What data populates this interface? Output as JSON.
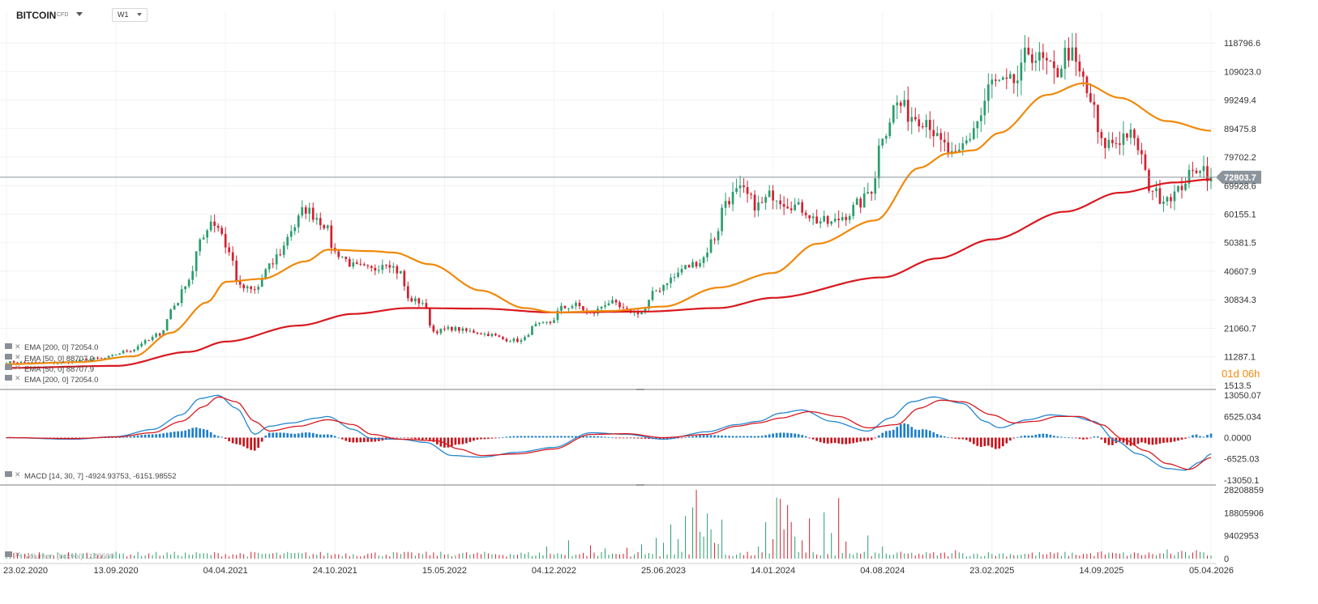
{
  "header": {
    "symbol": "BITCOIN",
    "symbol_sub": "CFD",
    "timeframe": "W1"
  },
  "countdown": {
    "days": "01d",
    "hours": "06h"
  },
  "indicators": {
    "ema200_label": "EMA [200, 0] 72054.0",
    "ema50_label": "EMA [50, 0] 88707.9",
    "macd_label": "MACD [14, 30, 7] -4924.93753, -6151.98552",
    "volume_label": "Volumen (tickvol) 1149680"
  },
  "colors": {
    "up": "#2a9d6e",
    "down": "#d32030",
    "ema50": "#f0890a",
    "ema200": "#d8191f",
    "macd_line": "#2487d0",
    "signal_line": "#d8191f",
    "hist_up": "#1f7fc9",
    "hist_down": "#c7141c",
    "price_tag": "#8c949c"
  },
  "chart_data": [
    {
      "type": "candlestick",
      "x_labels": [
        "23.02.2020",
        "13.09.2020",
        "04.04.2021",
        "24.10.2021",
        "15.05.2022",
        "04.12.2022",
        "25.06.2023",
        "14.01.2024",
        "04.08.2024",
        "23.02.2025",
        "14.09.2025",
        "05.04.2026"
      ],
      "y_ticks": [
        118796.6,
        109023.0,
        99249.4,
        89475.8,
        79702.2,
        69928.6,
        60155.1,
        50381.5,
        40607.9,
        30834.3,
        21060.7,
        11287.1,
        1513.5
      ],
      "ylim": [
        1513.5,
        125000
      ],
      "current_price": 72803.7,
      "anchors_close": [
        [
          0,
          9500
        ],
        [
          14,
          9200
        ],
        [
          26,
          10800
        ],
        [
          34,
          13500
        ],
        [
          38,
          16500
        ],
        [
          42,
          19200
        ],
        [
          46,
          29000
        ],
        [
          50,
          38000
        ],
        [
          53,
          50000
        ],
        [
          56,
          58000
        ],
        [
          58,
          56000
        ],
        [
          61,
          47000
        ],
        [
          64,
          35000
        ],
        [
          68,
          34000
        ],
        [
          72,
          42000
        ],
        [
          75,
          47000
        ],
        [
          78,
          55000
        ],
        [
          82,
          62000
        ],
        [
          84,
          60000
        ],
        [
          87,
          57000
        ],
        [
          90,
          47000
        ],
        [
          96,
          42000
        ],
        [
          100,
          41000
        ],
        [
          104,
          44000
        ],
        [
          108,
          40000
        ],
        [
          110,
          31000
        ],
        [
          114,
          30000
        ],
        [
          117,
          20000
        ],
        [
          122,
          21000
        ],
        [
          127,
          20000
        ],
        [
          132,
          19000
        ],
        [
          137,
          17200
        ],
        [
          141,
          16800
        ],
        [
          145,
          22000
        ],
        [
          149,
          23000
        ],
        [
          152,
          28000
        ],
        [
          156,
          29000
        ],
        [
          160,
          26000
        ],
        [
          165,
          30000
        ],
        [
          170,
          27000
        ],
        [
          174,
          26500
        ],
        [
          178,
          34000
        ],
        [
          182,
          38000
        ],
        [
          186,
          42000
        ],
        [
          190,
          44000
        ],
        [
          194,
          52000
        ],
        [
          197,
          65000
        ],
        [
          201,
          68000
        ],
        [
          206,
          63000
        ],
        [
          210,
          67000
        ],
        [
          214,
          64000
        ],
        [
          218,
          62000
        ],
        [
          222,
          58000
        ],
        [
          226,
          57000
        ],
        [
          230,
          60000
        ],
        [
          234,
          64000
        ],
        [
          237,
          69000
        ],
        [
          240,
          88000
        ],
        [
          244,
          98000
        ],
        [
          248,
          94000
        ],
        [
          252,
          93000
        ],
        [
          256,
          84000
        ],
        [
          260,
          79000
        ],
        [
          263,
          85000
        ],
        [
          266,
          92000
        ],
        [
          270,
          105000
        ],
        [
          274,
          104000
        ],
        [
          277,
          106000
        ],
        [
          280,
          116000
        ],
        [
          284,
          112000
        ],
        [
          287,
          108000
        ],
        [
          291,
          116000
        ],
        [
          294,
          108000
        ],
        [
          297,
          99000
        ],
        [
          300,
          84000
        ],
        [
          304,
          85000
        ],
        [
          307,
          88000
        ],
        [
          310,
          83000
        ],
        [
          313,
          70000
        ],
        [
          316,
          66000
        ],
        [
          320,
          67000
        ],
        [
          324,
          73000
        ],
        [
          327,
          77000
        ],
        [
          330,
          72803.7
        ]
      ],
      "series": [
        {
          "name": "EMA [200, 0] 72054.0",
          "anchors": [
            [
              0,
              7500
            ],
            [
              30,
              8200
            ],
            [
              50,
              13000
            ],
            [
              60,
              16500
            ],
            [
              80,
              22000
            ],
            [
              95,
              26000
            ],
            [
              110,
              28000
            ],
            [
              130,
              27800
            ],
            [
              150,
              26500
            ],
            [
              175,
              26800
            ],
            [
              195,
              28000
            ],
            [
              210,
              31500
            ],
            [
              240,
              38500
            ],
            [
              255,
              45000
            ],
            [
              270,
              51500
            ],
            [
              290,
              61000
            ],
            [
              305,
              67500
            ],
            [
              320,
              71000
            ],
            [
              330,
              72054
            ]
          ]
        },
        {
          "name": "EMA [50, 0] 88707.9",
          "anchors": [
            [
              0,
              8800
            ],
            [
              20,
              9500
            ],
            [
              35,
              11500
            ],
            [
              45,
              19500
            ],
            [
              55,
              30000
            ],
            [
              60,
              37000
            ],
            [
              70,
              38000
            ],
            [
              82,
              44000
            ],
            [
              88,
              48000
            ],
            [
              100,
              47500
            ],
            [
              106,
              47000
            ],
            [
              116,
              43000
            ],
            [
              130,
              34000
            ],
            [
              142,
              28000
            ],
            [
              150,
              26500
            ],
            [
              165,
              27000
            ],
            [
              180,
              28500
            ],
            [
              195,
              35000
            ],
            [
              210,
              40000
            ],
            [
              222,
              50000
            ],
            [
              238,
              58000
            ],
            [
              250,
              76000
            ],
            [
              258,
              81000
            ],
            [
              265,
              82000
            ],
            [
              272,
              88000
            ],
            [
              285,
              101000
            ],
            [
              295,
              105000
            ],
            [
              305,
              100000
            ],
            [
              318,
              92000
            ],
            [
              330,
              88707.9
            ]
          ]
        }
      ]
    },
    {
      "type": "histogram+line",
      "name": "MACD [14, 30, 7]",
      "y_ticks": [
        13050.07,
        6525.034,
        0.0,
        -6525.03,
        -13050.1
      ],
      "ylim": [
        -13050.1,
        13050.07
      ],
      "series": [
        {
          "name": "macd",
          "anchors": [
            [
              0,
              0
            ],
            [
              18,
              -500
            ],
            [
              30,
              300
            ],
            [
              40,
              2500
            ],
            [
              48,
              7000
            ],
            [
              53,
              12000
            ],
            [
              58,
              13000
            ],
            [
              63,
              9000
            ],
            [
              68,
              1000
            ],
            [
              72,
              3500
            ],
            [
              78,
              4500
            ],
            [
              85,
              6000
            ],
            [
              88,
              6500
            ],
            [
              95,
              2500
            ],
            [
              100,
              -300
            ],
            [
              108,
              -500
            ],
            [
              115,
              -1500
            ],
            [
              122,
              -5500
            ],
            [
              130,
              -6000
            ],
            [
              140,
              -4500
            ],
            [
              150,
              -3000
            ],
            [
              160,
              1500
            ],
            [
              170,
              1000
            ],
            [
              180,
              -500
            ],
            [
              192,
              1800
            ],
            [
              200,
              4000
            ],
            [
              206,
              5000
            ],
            [
              212,
              7500
            ],
            [
              218,
              8500
            ],
            [
              226,
              5000
            ],
            [
              236,
              2000
            ],
            [
              242,
              6000
            ],
            [
              248,
              11000
            ],
            [
              254,
              12500
            ],
            [
              262,
              10500
            ],
            [
              268,
              5000
            ],
            [
              272,
              3000
            ],
            [
              280,
              5500
            ],
            [
              286,
              7000
            ],
            [
              292,
              6500
            ],
            [
              298,
              5000
            ],
            [
              304,
              -1000
            ],
            [
              310,
              -5000
            ],
            [
              318,
              -9500
            ],
            [
              323,
              -10000
            ],
            [
              327,
              -7500
            ],
            [
              330,
              -4924.93753
            ]
          ]
        },
        {
          "name": "signal",
          "anchors": [
            [
              0,
              0
            ],
            [
              18,
              -300
            ],
            [
              30,
              200
            ],
            [
              40,
              1500
            ],
            [
              48,
              5000
            ],
            [
              54,
              9500
            ],
            [
              58,
              12500
            ],
            [
              63,
              11000
            ],
            [
              68,
              5000
            ],
            [
              72,
              2000
            ],
            [
              80,
              3500
            ],
            [
              88,
              5500
            ],
            [
              95,
              4000
            ],
            [
              100,
              1000
            ],
            [
              108,
              -500
            ],
            [
              118,
              -1000
            ],
            [
              124,
              -3500
            ],
            [
              130,
              -5500
            ],
            [
              140,
              -5000
            ],
            [
              150,
              -3500
            ],
            [
              160,
              1000
            ],
            [
              170,
              1200
            ],
            [
              180,
              0
            ],
            [
              192,
              1000
            ],
            [
              200,
              3500
            ],
            [
              206,
              4500
            ],
            [
              212,
              6000
            ],
            [
              220,
              8000
            ],
            [
              228,
              6500
            ],
            [
              236,
              3000
            ],
            [
              244,
              4000
            ],
            [
              250,
              9000
            ],
            [
              256,
              11500
            ],
            [
              262,
              11000
            ],
            [
              270,
              7000
            ],
            [
              276,
              4500
            ],
            [
              282,
              5000
            ],
            [
              288,
              6500
            ],
            [
              294,
              6500
            ],
            [
              300,
              4000
            ],
            [
              306,
              -500
            ],
            [
              312,
              -4000
            ],
            [
              318,
              -8000
            ],
            [
              324,
              -9800
            ],
            [
              330,
              -6151.98552
            ]
          ]
        }
      ]
    },
    {
      "type": "bar",
      "name": "Volumen",
      "y_ticks": [
        28208859,
        18805906,
        9402953,
        0
      ],
      "ylim": [
        0,
        28208859
      ],
      "base": 2200000,
      "spikes": [
        {
          "i": 148,
          "v": 5000000
        },
        {
          "i": 154,
          "v": 7500000
        },
        {
          "i": 160,
          "v": 5500000
        },
        {
          "i": 164,
          "v": 4200000
        },
        {
          "i": 170,
          "v": 4500000
        },
        {
          "i": 174,
          "v": 5800000
        },
        {
          "i": 178,
          "v": 8500000
        },
        {
          "i": 180,
          "v": 6500000
        },
        {
          "i": 182,
          "v": 14000000
        },
        {
          "i": 184,
          "v": 8000000
        },
        {
          "i": 186,
          "v": 17500000
        },
        {
          "i": 188,
          "v": 21000000
        },
        {
          "i": 189,
          "v": 28208859
        },
        {
          "i": 190,
          "v": 11000000
        },
        {
          "i": 191,
          "v": 9000000
        },
        {
          "i": 192,
          "v": 18500000
        },
        {
          "i": 193,
          "v": 12000000
        },
        {
          "i": 194,
          "v": 6500000
        },
        {
          "i": 195,
          "v": 6000000
        },
        {
          "i": 196,
          "v": 16000000
        },
        {
          "i": 206,
          "v": 5000000
        },
        {
          "i": 208,
          "v": 15000000
        },
        {
          "i": 210,
          "v": 8000000
        },
        {
          "i": 211,
          "v": 25000000
        },
        {
          "i": 212,
          "v": 24500000
        },
        {
          "i": 213,
          "v": 12000000
        },
        {
          "i": 214,
          "v": 22000000
        },
        {
          "i": 215,
          "v": 15000000
        },
        {
          "i": 216,
          "v": 9000000
        },
        {
          "i": 218,
          "v": 7500000
        },
        {
          "i": 220,
          "v": 16500000
        },
        {
          "i": 224,
          "v": 19000000
        },
        {
          "i": 226,
          "v": 10500000
        },
        {
          "i": 228,
          "v": 24800000
        },
        {
          "i": 230,
          "v": 7000000
        },
        {
          "i": 236,
          "v": 9500000
        },
        {
          "i": 240,
          "v": 5000000
        },
        {
          "i": 260,
          "v": 3500000
        },
        {
          "i": 300,
          "v": 3000000
        },
        {
          "i": 318,
          "v": 3800000
        },
        {
          "i": 322,
          "v": 3200000
        },
        {
          "i": 326,
          "v": 3500000
        }
      ]
    }
  ]
}
